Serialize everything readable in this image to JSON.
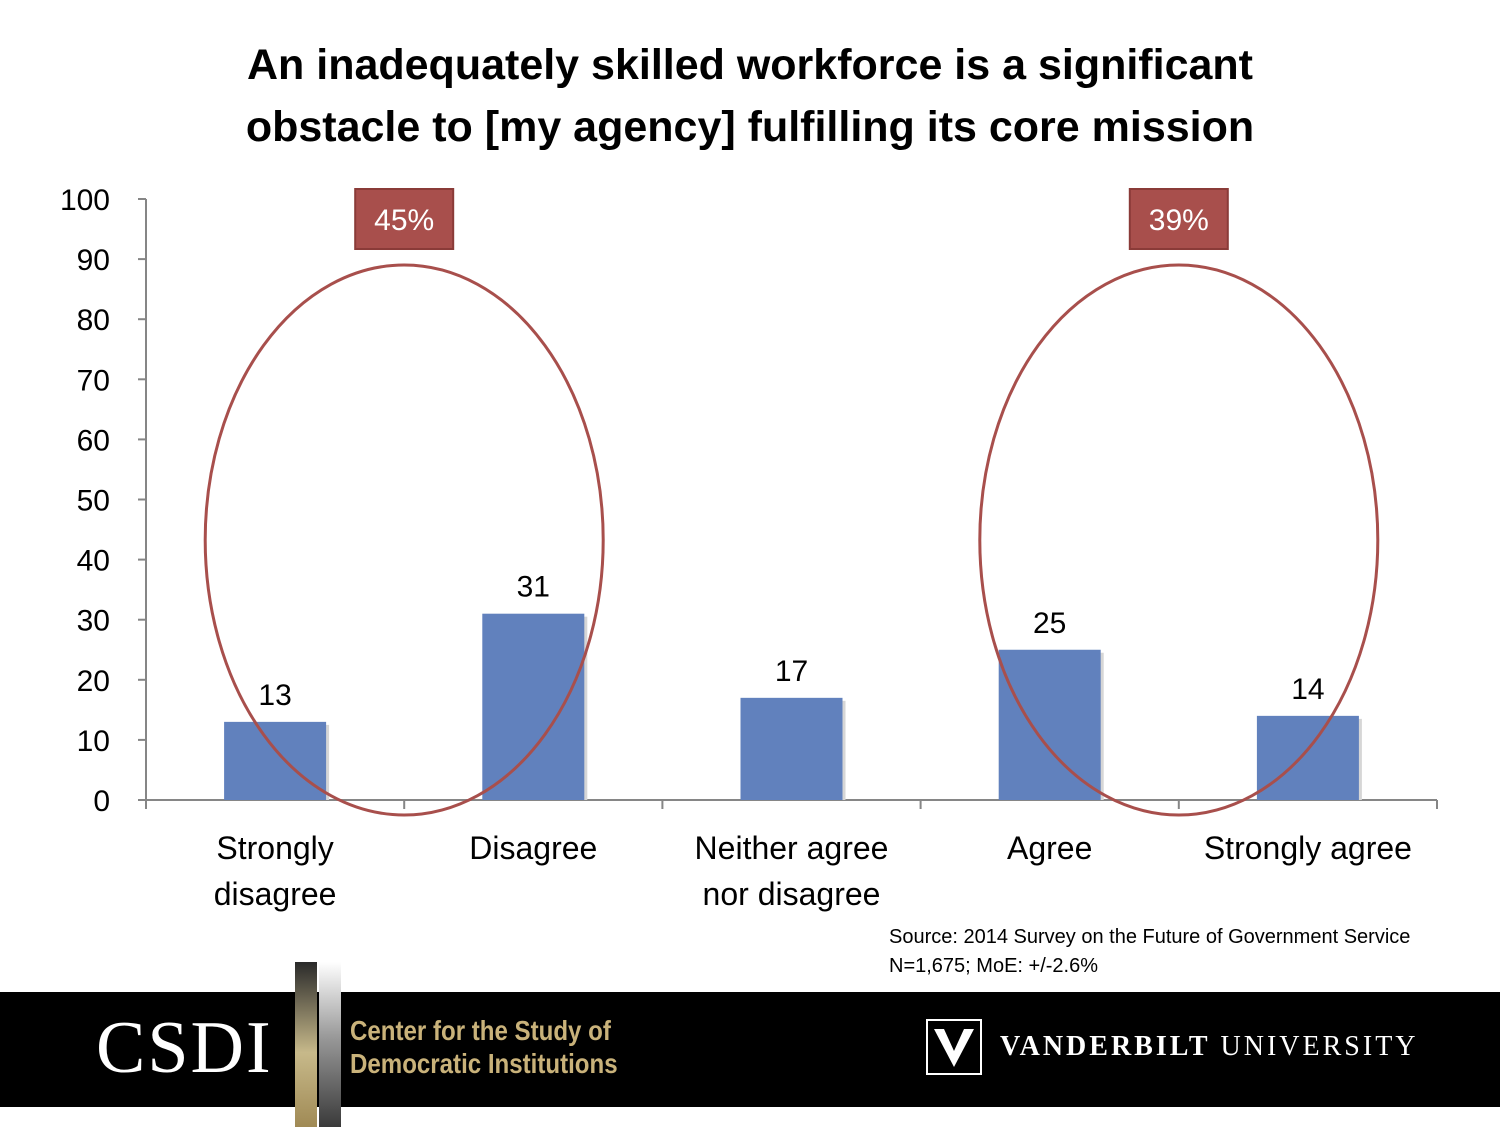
{
  "chart_data": {
    "type": "bar",
    "title_lines": [
      "An inadequately skilled workforce is a significant",
      "obstacle to [my agency] fulfilling its core mission"
    ],
    "categories": [
      [
        "Strongly",
        "disagree"
      ],
      [
        "Disagree"
      ],
      [
        "Neither agree",
        "nor disagree"
      ],
      [
        "Agree"
      ],
      [
        "Strongly agree"
      ]
    ],
    "values": [
      13,
      31,
      17,
      25,
      14
    ],
    "data_labels": [
      "13",
      "31",
      "17",
      "25",
      "14"
    ],
    "ylim": [
      0,
      100
    ],
    "yticks": [
      0,
      10,
      20,
      30,
      40,
      50,
      60,
      70,
      80,
      90,
      100
    ],
    "grid": false,
    "annotations": [
      {
        "label": "45%",
        "groups": [
          "Strongly disagree",
          "Disagree"
        ]
      },
      {
        "label": "39%",
        "groups": [
          "Agree",
          "Strongly agree"
        ]
      }
    ],
    "colors": {
      "bar": "#6181bd",
      "annotation": "#a84f4c"
    }
  },
  "source": {
    "line1": "Source: 2014 Survey on the Future of Government Service",
    "line2": "N=1,675; MoE: +/-2.6%"
  },
  "footer": {
    "csdi": "CSDI",
    "center_line1": "Center for the Study of",
    "center_line2": "Democratic Institutions",
    "vanderbilt_bold": "VANDERBILT",
    "vanderbilt_rest": " UNIVERSITY"
  }
}
